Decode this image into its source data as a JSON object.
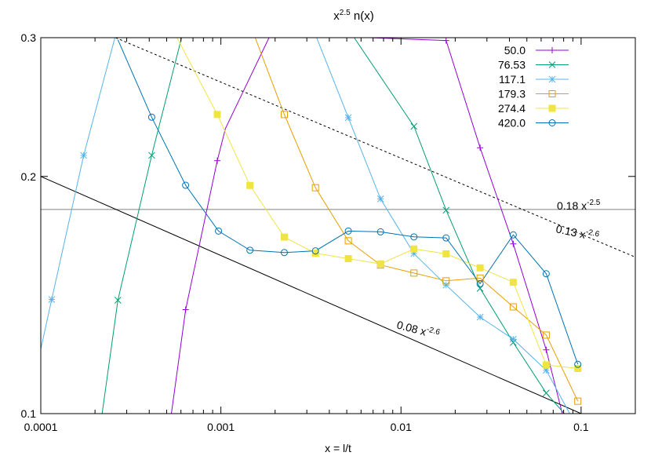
{
  "chart_data": {
    "type": "line",
    "title_main": "x",
    "title_sup": "2.5",
    "title_rest": " n(x)",
    "xlabel": "x = l/t",
    "ylabel": "",
    "xscale": "log",
    "yscale": "log",
    "xlim": [
      0.0001,
      0.2
    ],
    "ylim": [
      0.1,
      0.3
    ],
    "xticks": [
      0.0001,
      0.001,
      0.01,
      0.1
    ],
    "xtick_labels": [
      "0.0001",
      "0.001",
      "0.01",
      "0.1"
    ],
    "yticks": [
      0.1,
      0.2,
      0.3
    ],
    "ytick_labels": [
      "0.1",
      "0.2",
      "0.3"
    ],
    "grid": false,
    "legend_position": "top-right",
    "series": [
      {
        "name": "50.0",
        "color": "#9400d3",
        "marker": "plus",
        "x": [
          0.000531,
          0.000637,
          0.000955,
          0.00106,
          0.00185,
          0.00285,
          0.0044,
          0.0067,
          0.0178,
          0.0275,
          0.042,
          0.064,
          0.0786
        ],
        "y": [
          0.1,
          0.1355,
          0.2094,
          0.23,
          0.3,
          0.3,
          0.3,
          0.3,
          0.2975,
          0.2175,
          0.1642,
          0.1205,
          0.1
        ],
        "markers": [
          [
            0.000637,
            0.1355
          ],
          [
            0.000955,
            0.2094
          ],
          [
            0.0178,
            0.2975
          ],
          [
            0.0275,
            0.2175
          ],
          [
            0.042,
            0.1642
          ],
          [
            0.064,
            0.1205
          ]
        ]
      },
      {
        "name": "76.53",
        "color": "#009e73",
        "marker": "cross",
        "x": [
          0.000219,
          0.000268,
          0.000413,
          0.000605,
          0.0016,
          0.0029,
          0.0055,
          0.0118,
          0.0178,
          0.0275,
          0.042,
          0.064,
          0.0807
        ],
        "y": [
          0.1,
          0.1393,
          0.2127,
          0.3,
          0.3,
          0.3,
          0.3,
          0.2315,
          0.1812,
          0.1442,
          0.1231,
          0.1062,
          0.1
        ],
        "markers": [
          [
            0.000268,
            0.1393
          ],
          [
            0.000413,
            0.2127
          ],
          [
            0.0118,
            0.2315
          ],
          [
            0.0178,
            0.1812
          ],
          [
            0.0275,
            0.1442
          ],
          [
            0.042,
            0.1231
          ],
          [
            0.064,
            0.1062
          ]
        ]
      },
      {
        "name": "117.1",
        "color": "#56b4e9",
        "marker": "star",
        "x": [
          9.5e-05,
          0.000115,
          0.000173,
          0.000258,
          0.0004,
          0.00065,
          0.0011,
          0.0025,
          0.0034,
          0.0051,
          0.0077,
          0.0118,
          0.0178,
          0.0275,
          0.042,
          0.064,
          0.0865
        ],
        "y": [
          0.1145,
          0.1396,
          0.2127,
          0.3,
          0.3,
          0.3,
          0.3,
          0.3,
          0.3,
          0.2375,
          0.1873,
          0.1596,
          0.1456,
          0.1326,
          0.1243,
          0.1135,
          0.1
        ],
        "markers": [
          [
            0.000115,
            0.1396
          ],
          [
            0.000173,
            0.2127
          ],
          [
            0.0051,
            0.2375
          ],
          [
            0.0077,
            0.1873
          ],
          [
            0.0118,
            0.1596
          ],
          [
            0.0178,
            0.1456
          ],
          [
            0.0275,
            0.1326
          ],
          [
            0.042,
            0.1243
          ],
          [
            0.064,
            0.1135
          ]
        ]
      },
      {
        "name": "179.3",
        "color": "#e69f00",
        "marker": "square-open",
        "x": [
          0.00155,
          0.00225,
          0.00335,
          0.0051,
          0.0077,
          0.0118,
          0.0178,
          0.0275,
          0.042,
          0.064,
          0.0959
        ],
        "y": [
          0.3,
          0.2397,
          0.1935,
          0.1657,
          0.1544,
          0.1508,
          0.1474,
          0.1486,
          0.1366,
          0.1258,
          0.1037
        ],
        "markers": [
          [
            0.00225,
            0.2397
          ],
          [
            0.00335,
            0.1935
          ],
          [
            0.0051,
            0.1657
          ],
          [
            0.0077,
            0.1544
          ],
          [
            0.0118,
            0.1508
          ],
          [
            0.0178,
            0.1474
          ],
          [
            0.0275,
            0.1486
          ],
          [
            0.042,
            0.1366
          ],
          [
            0.064,
            0.1258
          ],
          [
            0.0959,
            0.1037
          ]
        ]
      },
      {
        "name": "274.4",
        "color": "#f0e442",
        "marker": "square-filled",
        "x": [
          0.00057,
          0.000955,
          0.00145,
          0.00225,
          0.00335,
          0.0051,
          0.0077,
          0.0118,
          0.0178,
          0.0275,
          0.042,
          0.064,
          0.0959
        ],
        "y": [
          0.3,
          0.2397,
          0.1948,
          0.1675,
          0.1598,
          0.1573,
          0.1549,
          0.1618,
          0.1595,
          0.1531,
          0.1468,
          0.1153,
          0.1141
        ],
        "markers": [
          [
            0.000955,
            0.2397
          ],
          [
            0.00145,
            0.1948
          ],
          [
            0.00225,
            0.1675
          ],
          [
            0.00335,
            0.1598
          ],
          [
            0.0051,
            0.1573
          ],
          [
            0.0077,
            0.1549
          ],
          [
            0.0118,
            0.1618
          ],
          [
            0.0178,
            0.1595
          ],
          [
            0.0275,
            0.1531
          ],
          [
            0.042,
            0.1468
          ],
          [
            0.064,
            0.1153
          ],
          [
            0.0959,
            0.1141
          ]
        ]
      },
      {
        "name": "420.0",
        "color": "#0072b2",
        "marker": "circle-open",
        "x": [
          0.000268,
          0.000413,
          0.000637,
          0.00097,
          0.00145,
          0.00225,
          0.00335,
          0.0051,
          0.0077,
          0.0118,
          0.0178,
          0.0275,
          0.042,
          0.064,
          0.0959
        ],
        "y": [
          0.2982,
          0.2378,
          0.1949,
          0.1705,
          0.1612,
          0.1601,
          0.1609,
          0.1705,
          0.1701,
          0.1676,
          0.1671,
          0.1462,
          0.1686,
          0.1505,
          0.1155
        ],
        "markers": [
          [
            0.000413,
            0.2378
          ],
          [
            0.000637,
            0.1949
          ],
          [
            0.00097,
            0.1705
          ],
          [
            0.00145,
            0.1612
          ],
          [
            0.00225,
            0.1601
          ],
          [
            0.00335,
            0.1609
          ],
          [
            0.0051,
            0.1705
          ],
          [
            0.0077,
            0.1701
          ],
          [
            0.0118,
            0.1676
          ],
          [
            0.0178,
            0.1671
          ],
          [
            0.0275,
            0.1462
          ],
          [
            0.042,
            0.1686
          ],
          [
            0.064,
            0.1505
          ],
          [
            0.0959,
            0.1155
          ]
        ]
      }
    ],
    "reference_lines": [
      {
        "label_base": "0.18 x",
        "label_exp": "-2.5",
        "style": "solid",
        "color": "#808080",
        "x": [
          0.0001,
          0.2
        ],
        "y": [
          0.1816,
          0.1816
        ]
      },
      {
        "label_base": "0.13 x",
        "label_exp": "-2.6",
        "style": "dotted",
        "color": "#000000",
        "x": [
          0.00026,
          0.2
        ],
        "y": [
          0.3,
          0.158
        ]
      },
      {
        "label_base": "0.08 x",
        "label_exp": "-2.6",
        "style": "solid",
        "color": "#000000",
        "x": [
          0.0001,
          0.1
        ],
        "y": [
          0.2,
          0.1
        ]
      }
    ]
  }
}
